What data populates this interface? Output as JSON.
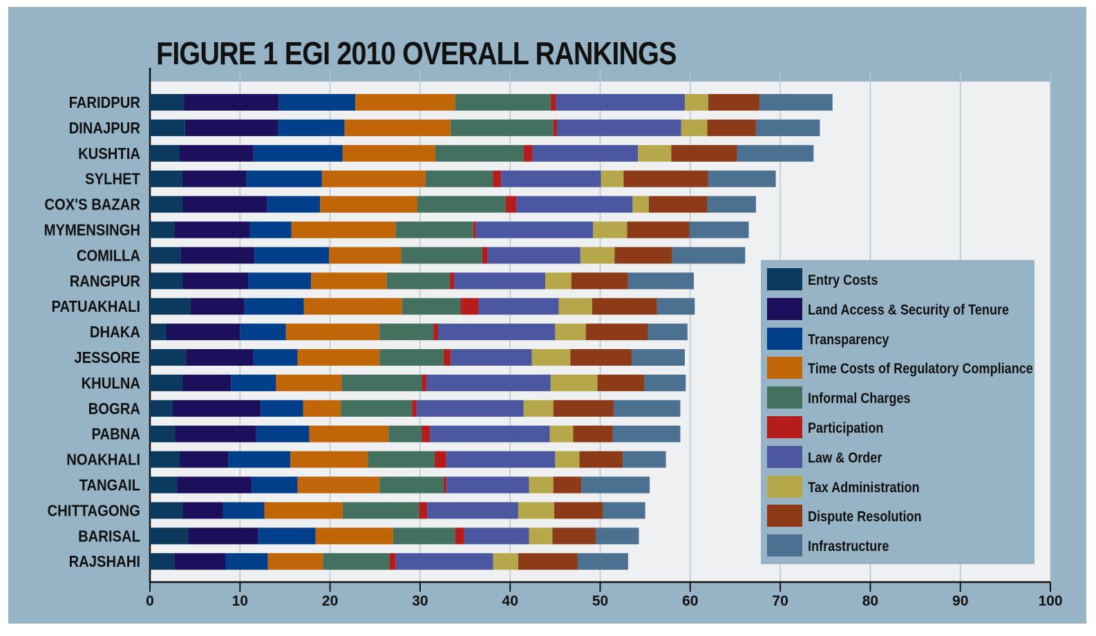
{
  "chart_data": {
    "type": "bar",
    "orientation": "horizontal",
    "stacked": true,
    "title": "FIGURE 1 EGI 2010 OVERALL RANKINGS",
    "xlabel": "",
    "ylabel": "",
    "xlim": [
      0,
      100
    ],
    "x_ticks": [
      "0",
      "10",
      "20",
      "30",
      "40",
      "50",
      "60",
      "70",
      "80",
      "90",
      "100"
    ],
    "grid": true,
    "legend_position": "bottom-right",
    "categories": [
      "FARIDPUR",
      "DINAJPUR",
      "KUSHTIA",
      "SYLHET",
      "COX'S BAZAR",
      "MYMENSINGH",
      "COMILLA",
      "RANGPUR",
      "PATUAKHALI",
      "DHAKA",
      "JESSORE",
      "KHULNA",
      "BOGRA",
      "PABNA",
      "NOAKHALI",
      "TANGAIL",
      "CHITTAGONG",
      "BARISAL",
      "RAJSHAHI"
    ],
    "series": [
      {
        "name": "Entry Costs",
        "color": "#0b3a5e",
        "values": [
          3.8,
          3.9,
          3.3,
          3.6,
          3.6,
          2.7,
          3.4,
          3.6,
          4.5,
          1.8,
          4.0,
          3.6,
          2.5,
          2.8,
          3.3,
          3.0,
          3.6,
          4.2,
          2.7
        ]
      },
      {
        "name": "Land Access & Security of Tenure",
        "color": "#1c0f5c",
        "values": [
          10.5,
          10.3,
          8.2,
          7.1,
          9.4,
          8.4,
          8.2,
          7.3,
          6.0,
          8.2,
          7.5,
          5.4,
          9.8,
          9.0,
          5.4,
          8.3,
          4.5,
          7.8,
          5.7
        ]
      },
      {
        "name": "Transparency",
        "color": "#023f8a",
        "values": [
          8.5,
          7.4,
          9.9,
          8.4,
          5.9,
          4.6,
          8.3,
          7.0,
          6.6,
          5.1,
          4.9,
          5.0,
          4.7,
          5.9,
          6.9,
          5.1,
          4.6,
          6.4,
          4.7
        ]
      },
      {
        "name": "Time Costs of Regulatory Compliance",
        "color": "#c06508",
        "values": [
          11.1,
          11.8,
          10.3,
          11.5,
          10.8,
          11.6,
          8.0,
          8.4,
          10.9,
          10.4,
          9.1,
          7.3,
          4.2,
          8.8,
          8.6,
          9.1,
          8.7,
          8.6,
          6.1
        ]
      },
      {
        "name": "Informal Charges",
        "color": "#44705f",
        "values": [
          10.6,
          11.4,
          9.8,
          7.5,
          9.8,
          8.6,
          9.0,
          7.0,
          6.5,
          6.0,
          7.1,
          8.9,
          7.9,
          3.7,
          7.4,
          7.1,
          8.5,
          6.9,
          7.4
        ]
      },
      {
        "name": "Participation",
        "color": "#b51c1c",
        "values": [
          0.6,
          0.4,
          1.0,
          0.9,
          1.2,
          0.3,
          0.6,
          0.5,
          2.0,
          0.5,
          0.8,
          0.5,
          0.5,
          0.9,
          1.3,
          0.3,
          0.9,
          1.0,
          0.7
        ]
      },
      {
        "name": "Law & Order",
        "color": "#4b57a0",
        "values": [
          14.3,
          13.8,
          11.7,
          11.1,
          12.9,
          13.0,
          10.3,
          10.1,
          8.9,
          13.0,
          9.0,
          13.8,
          11.9,
          13.3,
          12.1,
          9.2,
          10.1,
          7.2,
          10.8
        ]
      },
      {
        "name": "Tax Administration",
        "color": "#b5a74a",
        "values": [
          2.6,
          2.9,
          3.7,
          2.5,
          1.8,
          3.8,
          3.8,
          2.9,
          3.7,
          3.4,
          4.3,
          5.2,
          3.3,
          2.6,
          2.7,
          2.7,
          4.0,
          2.6,
          2.8
        ]
      },
      {
        "name": "Dispute Resolution",
        "color": "#8c3a18",
        "values": [
          5.7,
          5.4,
          7.3,
          9.4,
          6.5,
          6.9,
          6.4,
          6.3,
          7.2,
          6.9,
          6.8,
          5.2,
          6.7,
          4.4,
          4.8,
          3.1,
          5.4,
          4.8,
          6.6
        ]
      },
      {
        "name": "Infrastructure",
        "color": "#4c7090",
        "values": [
          8.1,
          7.1,
          8.5,
          7.5,
          5.4,
          6.6,
          8.1,
          7.3,
          4.2,
          4.4,
          5.9,
          4.6,
          7.4,
          7.5,
          4.8,
          7.6,
          4.7,
          4.8,
          5.6
        ]
      }
    ]
  }
}
